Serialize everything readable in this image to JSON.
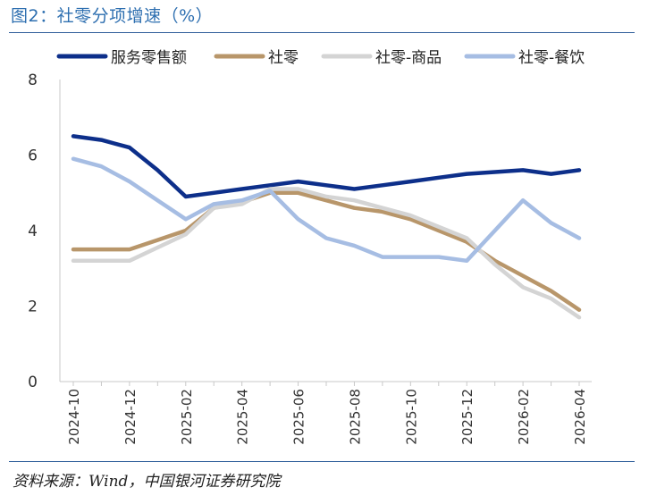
{
  "figure": {
    "title": "图2：社零分项增速（%）",
    "source": "资料来源：Wind，中国银河证券研究院"
  },
  "chart_data": {
    "type": "line",
    "title": "图2：社零分项增速（%）",
    "xlabel": "",
    "ylabel": "",
    "ylim": [
      0,
      8
    ],
    "yticks": [
      0,
      2,
      4,
      6,
      8
    ],
    "x": [
      "2024-10",
      "2024-11",
      "2024-12",
      "2025-01",
      "2025-02",
      "2025-03",
      "2025-04",
      "2025-05",
      "2025-06",
      "2025-07",
      "2025-08",
      "2025-09",
      "2025-10",
      "2025-11",
      "2025-12",
      "2026-01",
      "2026-02",
      "2026-03",
      "2026-04"
    ],
    "xtick_labels": [
      "2024-10",
      "2024-12",
      "2025-02",
      "2025-04",
      "2025-06",
      "2025-08",
      "2025-10",
      "2025-12",
      "2026-02",
      "2026-04"
    ],
    "grid": false,
    "legend": "top",
    "series": [
      {
        "name": "服务零售额",
        "color": "#0d2f8a",
        "values": [
          6.5,
          6.4,
          6.2,
          5.6,
          4.9,
          5.0,
          5.1,
          5.2,
          5.3,
          5.2,
          5.1,
          5.2,
          5.3,
          5.4,
          5.5,
          5.55,
          5.6,
          5.5,
          5.6
        ]
      },
      {
        "name": "社零",
        "color": "#b8966a",
        "values": [
          3.5,
          3.5,
          3.5,
          3.75,
          4.0,
          4.6,
          4.75,
          5.0,
          5.0,
          4.8,
          4.6,
          4.5,
          4.3,
          4.0,
          3.7,
          3.2,
          2.8,
          2.4,
          1.9
        ]
      },
      {
        "name": "社零-商品",
        "color": "#d4d4d4",
        "values": [
          3.2,
          3.2,
          3.2,
          3.55,
          3.9,
          4.6,
          4.7,
          5.1,
          5.1,
          4.9,
          4.8,
          4.6,
          4.4,
          4.1,
          3.8,
          3.1,
          2.5,
          2.2,
          1.7
        ]
      },
      {
        "name": "社零-餐饮",
        "color": "#a6bde3",
        "values": [
          5.9,
          5.7,
          5.3,
          4.8,
          4.3,
          4.7,
          4.8,
          5.05,
          4.3,
          3.8,
          3.6,
          3.3,
          3.3,
          3.3,
          3.2,
          4.0,
          4.8,
          4.2,
          3.8
        ]
      }
    ]
  }
}
